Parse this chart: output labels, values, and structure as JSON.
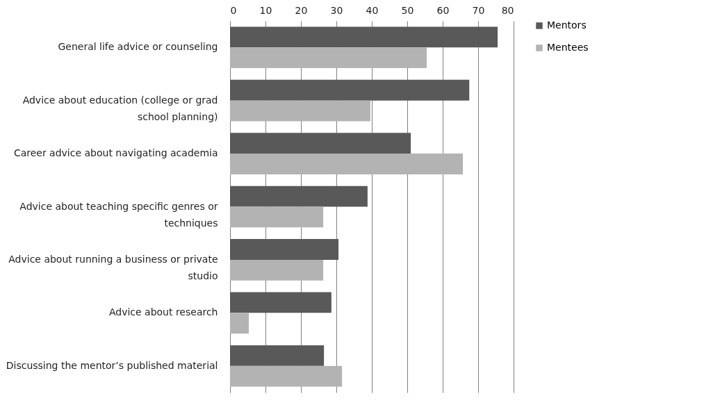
{
  "chart_data": {
    "type": "bar",
    "orientation": "horizontal",
    "categories": [
      "General life advice or counseling",
      "Advice about education (college or grad school planning)",
      "Career advice about navigating academia",
      "Advice about teaching specific genres or techniques",
      "Advice about running a business or private studio",
      "Advice about research",
      "Discussing the mentor’s published material"
    ],
    "series": [
      {
        "name": "Mentors",
        "color": "#595959",
        "values": [
          75.5,
          67.5,
          51,
          38.8,
          30.6,
          28.6,
          26.5
        ]
      },
      {
        "name": "Mentees",
        "color": "#b3b3b3",
        "values": [
          55.5,
          39.6,
          65.7,
          26.3,
          26.3,
          5.3,
          31.6
        ]
      }
    ],
    "xlim": [
      0,
      80
    ],
    "xticks": [
      0,
      10,
      20,
      30,
      40,
      50,
      60,
      70,
      80
    ],
    "grid": "x",
    "legend": "right"
  }
}
